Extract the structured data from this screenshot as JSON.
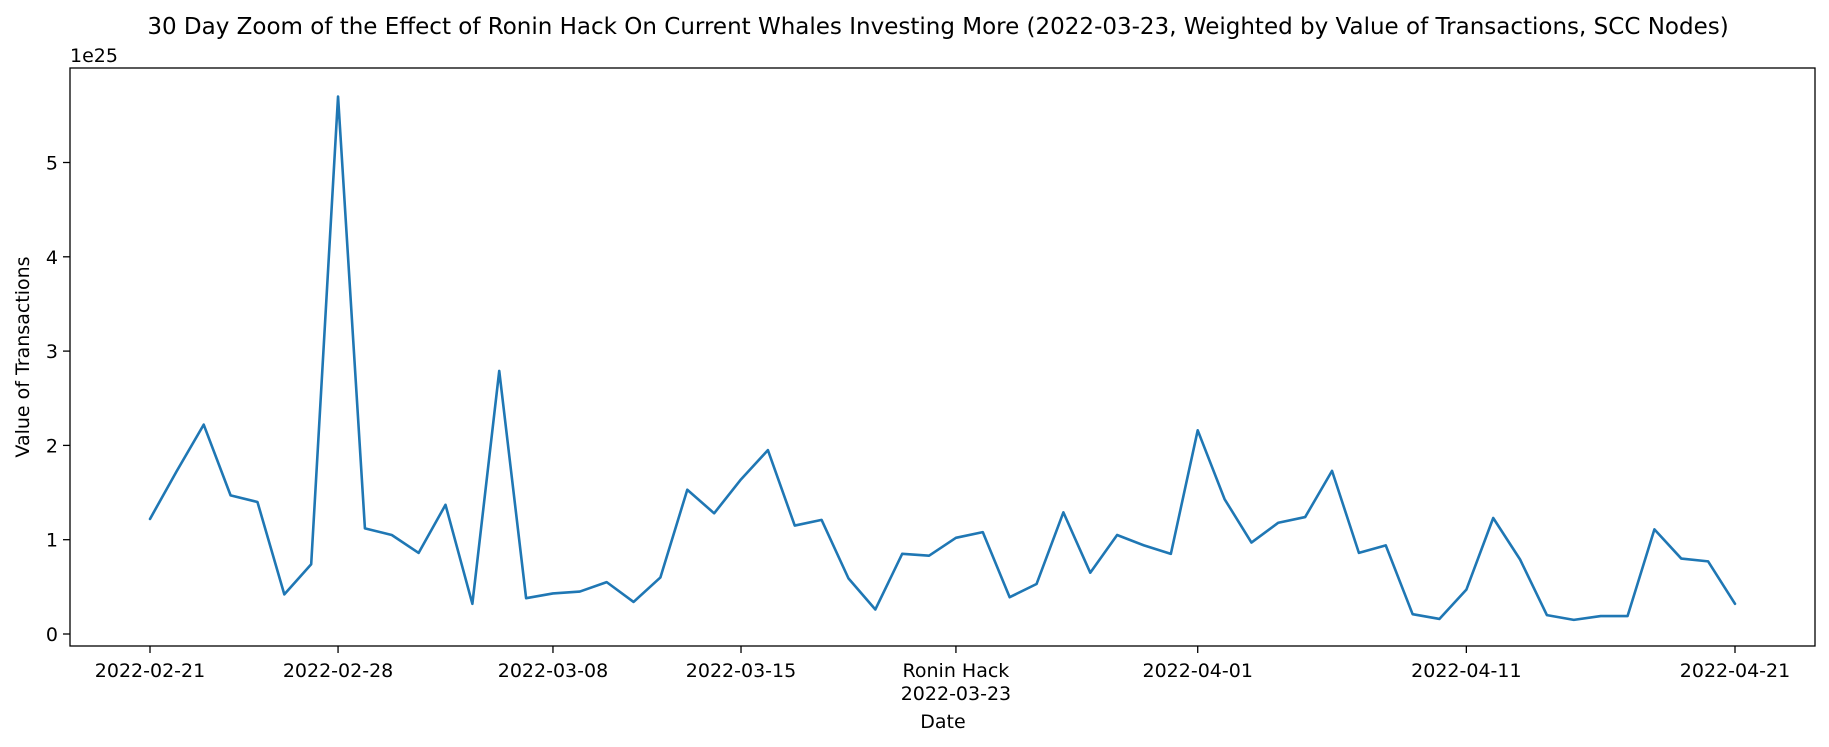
{
  "chart_data": {
    "type": "line",
    "title": "30 Day Zoom of the Effect of Ronin Hack On Current Whales Investing More (2022-03-23, Weighted by Value of Transactions, SCC Nodes)",
    "xlabel": "Date",
    "ylabel": "Value of Transactions",
    "y_offset_label": "1e25",
    "y_scale": 1e+25,
    "xlim": [
      "2022-02-21",
      "2022-04-21"
    ],
    "ylim": [
      0,
      5.7
    ],
    "grid": false,
    "legend": "none",
    "line_color": "#1f77b4",
    "x_ticks": [
      {
        "date": "2022-02-21",
        "label": "2022-02-21"
      },
      {
        "date": "2022-02-28",
        "label": "2022-02-28"
      },
      {
        "date": "2022-03-08",
        "label": "2022-03-08"
      },
      {
        "date": "2022-03-15",
        "label": "2022-03-15"
      },
      {
        "date": "2022-03-23",
        "label": "Ronin Hack\n2022-03-23"
      },
      {
        "date": "2022-04-01",
        "label": "2022-04-01"
      },
      {
        "date": "2022-04-11",
        "label": "2022-04-11"
      },
      {
        "date": "2022-04-21",
        "label": "2022-04-21"
      }
    ],
    "y_ticks": [
      0,
      1,
      2,
      3,
      4,
      5
    ],
    "series": [
      {
        "x": [
          "2022-02-21",
          "2022-02-22",
          "2022-02-23",
          "2022-02-24",
          "2022-02-25",
          "2022-02-26",
          "2022-02-27",
          "2022-02-28",
          "2022-03-01",
          "2022-03-02",
          "2022-03-03",
          "2022-03-04",
          "2022-03-05",
          "2022-03-06",
          "2022-03-07",
          "2022-03-08",
          "2022-03-09",
          "2022-03-10",
          "2022-03-11",
          "2022-03-12",
          "2022-03-13",
          "2022-03-14",
          "2022-03-15",
          "2022-03-16",
          "2022-03-17",
          "2022-03-18",
          "2022-03-19",
          "2022-03-20",
          "2022-03-21",
          "2022-03-22",
          "2022-03-23",
          "2022-03-24",
          "2022-03-25",
          "2022-03-26",
          "2022-03-27",
          "2022-03-28",
          "2022-03-29",
          "2022-03-30",
          "2022-03-31",
          "2022-04-01",
          "2022-04-02",
          "2022-04-03",
          "2022-04-04",
          "2022-04-05",
          "2022-04-06",
          "2022-04-07",
          "2022-04-08",
          "2022-04-09",
          "2022-04-10",
          "2022-04-11",
          "2022-04-12",
          "2022-04-13",
          "2022-04-14",
          "2022-04-15",
          "2022-04-16",
          "2022-04-17",
          "2022-04-18",
          "2022-04-19",
          "2022-04-20",
          "2022-04-21"
        ],
        "values": [
          1.22,
          1.73,
          2.22,
          1.47,
          1.4,
          0.42,
          0.74,
          5.7,
          1.12,
          1.05,
          0.86,
          1.37,
          0.32,
          2.79,
          0.38,
          0.43,
          0.45,
          0.55,
          0.34,
          0.6,
          1.53,
          1.28,
          1.64,
          1.95,
          1.15,
          1.21,
          0.59,
          0.26,
          0.85,
          0.83,
          1.02,
          1.08,
          0.39,
          0.53,
          1.29,
          0.65,
          1.05,
          0.94,
          0.85,
          2.16,
          1.43,
          0.97,
          1.18,
          1.24,
          1.73,
          0.86,
          0.94,
          0.21,
          0.16,
          0.47,
          1.23,
          0.79,
          0.2,
          0.15,
          0.19,
          0.19,
          1.11,
          0.8,
          0.77,
          0.32
        ]
      }
    ]
  }
}
